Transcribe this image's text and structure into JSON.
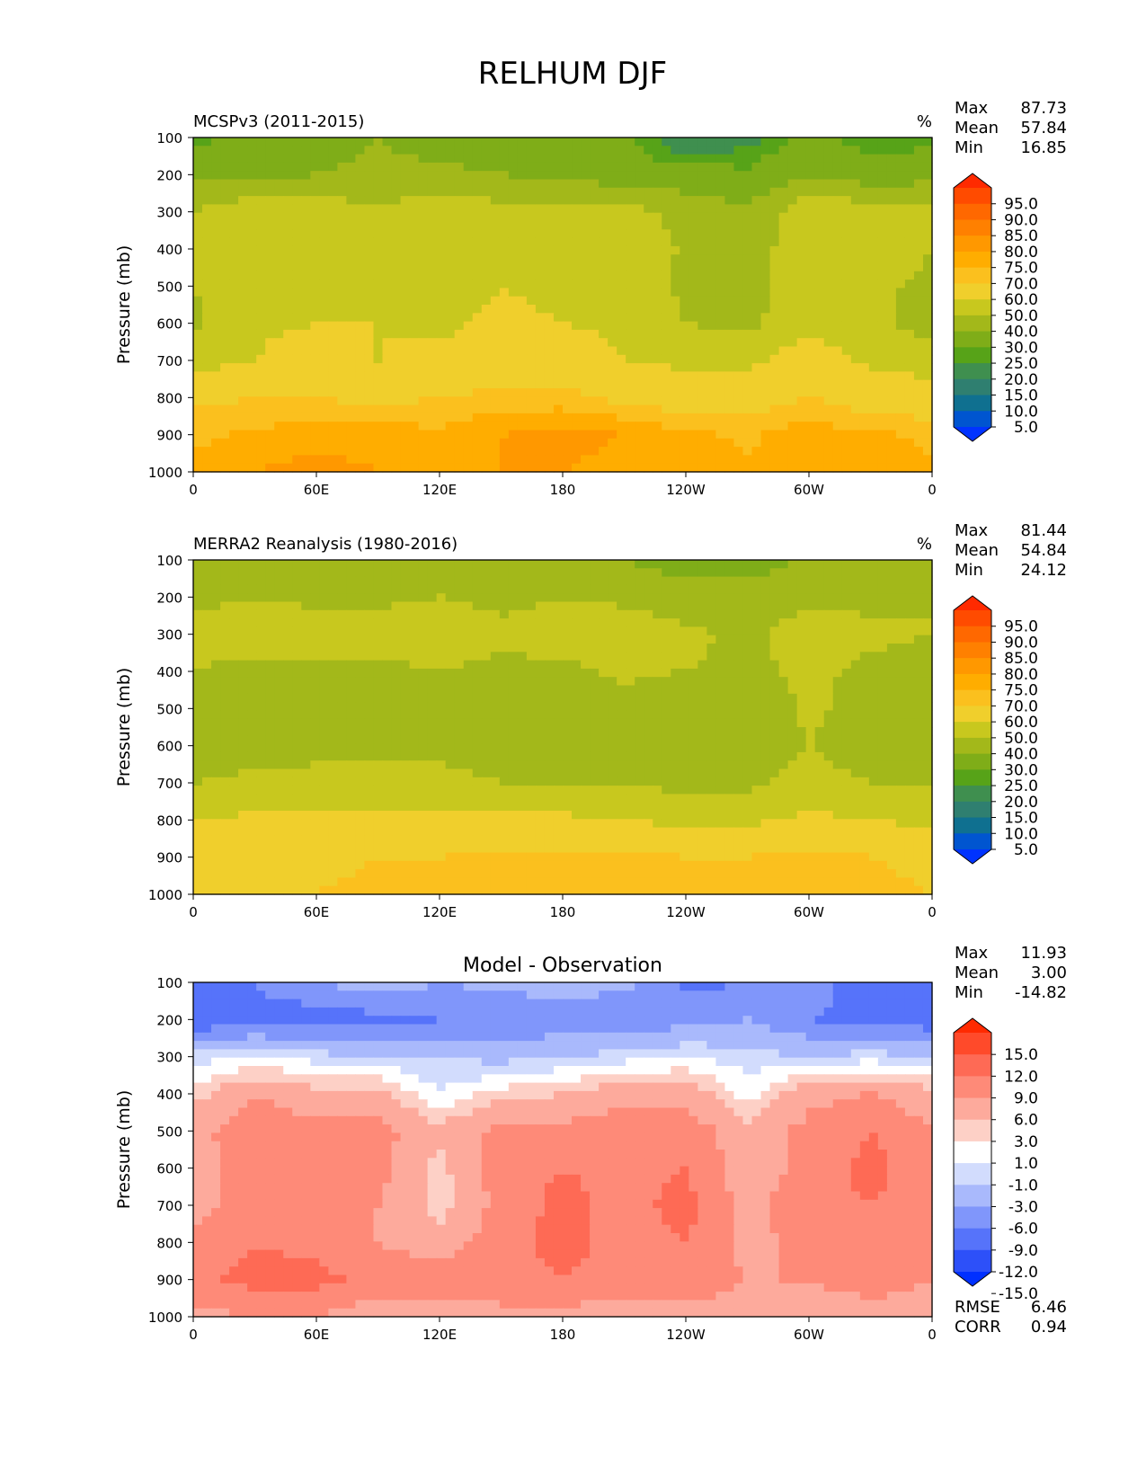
{
  "figure": {
    "title": "RELHUM DJF"
  },
  "axes": {
    "ylabel": "Pressure (mb)",
    "y_ticks": [
      "100",
      "200",
      "300",
      "400",
      "500",
      "600",
      "700",
      "800",
      "900",
      "1000"
    ],
    "x_ticks": [
      "0",
      "60E",
      "120E",
      "180",
      "120W",
      "60W",
      "0"
    ]
  },
  "stats_labels": {
    "max": "Max",
    "mean": "Mean",
    "min": "Min",
    "rmse": "RMSE",
    "corr": "CORR"
  },
  "panels": [
    {
      "id": "model",
      "left_title": "MCSPv3 (2011-2015)",
      "center_title": "",
      "units": "%",
      "stats": {
        "max": "87.73",
        "mean": "57.84",
        "min": "16.85"
      },
      "colorbar": {
        "labels": [
          "95.0",
          "90.0",
          "85.0",
          "80.0",
          "75.0",
          "70.0",
          "60.0",
          "50.0",
          "40.0",
          "30.0",
          "25.0",
          "20.0",
          "15.0",
          "10.0",
          "5.0"
        ],
        "colors": [
          "#ff2a00",
          "#ff4b00",
          "#ff6800",
          "#ff8000",
          "#ff9800",
          "#ffad00",
          "#fbc01e",
          "#f0cf2c",
          "#c8c81e",
          "#a3b81a",
          "#7fad18",
          "#57a318",
          "#3f8f4f",
          "#2f7f70",
          "#0f7090",
          "#0055d0",
          "#0033ff"
        ]
      }
    },
    {
      "id": "obs",
      "left_title": "MERRA2 Reanalysis (1980-2016)",
      "center_title": "",
      "units": "%",
      "stats": {
        "max": "81.44",
        "mean": "54.84",
        "min": "24.12"
      },
      "colorbar": {
        "labels": [
          "95.0",
          "90.0",
          "85.0",
          "80.0",
          "75.0",
          "70.0",
          "60.0",
          "50.0",
          "40.0",
          "30.0",
          "25.0",
          "20.0",
          "15.0",
          "10.0",
          "5.0"
        ],
        "colors": [
          "#ff2a00",
          "#ff4b00",
          "#ff6800",
          "#ff8000",
          "#ff9800",
          "#ffad00",
          "#fbc01e",
          "#f0cf2c",
          "#c8c81e",
          "#a3b81a",
          "#7fad18",
          "#57a318",
          "#3f8f4f",
          "#2f7f70",
          "#0f7090",
          "#0055d0",
          "#0033ff"
        ]
      }
    },
    {
      "id": "diff",
      "left_title": "",
      "center_title": "Model - Observation",
      "units": "",
      "stats": {
        "max": "11.93",
        "mean": "3.00",
        "min": "-14.82",
        "rmse": "6.46",
        "corr": "0.94"
      },
      "colorbar": {
        "labels": [
          "15.0",
          "12.0",
          "9.0",
          "6.0",
          "3.0",
          "1.0",
          "-1.0",
          "-3.0",
          "-6.0",
          "-9.0",
          "-12.0",
          "-15.0"
        ],
        "colors": [
          "#ff2a00",
          "#ff4a2a",
          "#fe6a55",
          "#fe8a78",
          "#fdaa9c",
          "#fdd0c6",
          "#ffffff",
          "#d2dcfd",
          "#a9b9fc",
          "#8096fb",
          "#5673fa",
          "#2d50f9",
          "#0030ff"
        ]
      }
    }
  ],
  "chart_data": [
    {
      "type": "heatmap",
      "title": "MCSPv3 (2011-2015)",
      "units": "%",
      "ylabel": "Pressure (mb)",
      "x": [
        0,
        30,
        60,
        90,
        120,
        150,
        180,
        210,
        240,
        270,
        300,
        330,
        360
      ],
      "x_labels": [
        "0",
        "60E",
        "120E",
        "180",
        "120W",
        "60W",
        "0"
      ],
      "y": [
        100,
        200,
        300,
        400,
        500,
        600,
        700,
        800,
        900,
        1000
      ],
      "ylim": [
        1000,
        100
      ],
      "levels": [
        5,
        10,
        15,
        20,
        25,
        30,
        40,
        50,
        60,
        70,
        75,
        80,
        85,
        90,
        95
      ],
      "z": [
        [
          28,
          32,
          36,
          40,
          36,
          34,
          38,
          32,
          18,
          22,
          34,
          26,
          28
        ],
        [
          38,
          36,
          40,
          42,
          42,
          40,
          38,
          34,
          34,
          32,
          38,
          34,
          36
        ],
        [
          50,
          58,
          56,
          52,
          56,
          54,
          52,
          55,
          46,
          42,
          58,
          56,
          54
        ],
        [
          52,
          56,
          55,
          58,
          52,
          54,
          50,
          60,
          48,
          44,
          58,
          56,
          50
        ],
        [
          50,
          58,
          60,
          58,
          56,
          60,
          58,
          58,
          48,
          46,
          56,
          52,
          48
        ],
        [
          48,
          58,
          60,
          60,
          58,
          62,
          60,
          58,
          50,
          48,
          56,
          52,
          46
        ],
        [
          56,
          60,
          66,
          60,
          62,
          66,
          66,
          60,
          58,
          58,
          66,
          58,
          56
        ],
        [
          68,
          70,
          70,
          68,
          70,
          72,
          72,
          68,
          66,
          66,
          70,
          66,
          64
        ],
        [
          74,
          76,
          78,
          78,
          76,
          80,
          82,
          80,
          76,
          74,
          78,
          76,
          74
        ],
        [
          76,
          80,
          82,
          80,
          78,
          80,
          80,
          78,
          78,
          76,
          78,
          76,
          76
        ]
      ],
      "stats": {
        "max": 87.73,
        "mean": 57.84,
        "min": 16.85
      }
    },
    {
      "type": "heatmap",
      "title": "MERRA2 Reanalysis (1980-2016)",
      "units": "%",
      "ylabel": "Pressure (mb)",
      "x": [
        0,
        30,
        60,
        90,
        120,
        150,
        180,
        210,
        240,
        270,
        300,
        330,
        360
      ],
      "x_labels": [
        "0",
        "60E",
        "120E",
        "180",
        "120W",
        "60W",
        "0"
      ],
      "y": [
        100,
        200,
        300,
        400,
        500,
        600,
        700,
        800,
        900,
        1000
      ],
      "ylim": [
        1000,
        100
      ],
      "levels": [
        5,
        10,
        15,
        20,
        25,
        30,
        40,
        50,
        60,
        70,
        75,
        80,
        85,
        90,
        95
      ],
      "z": [
        [
          42,
          44,
          44,
          42,
          44,
          42,
          42,
          40,
          36,
          34,
          42,
          44,
          42
        ],
        [
          48,
          50,
          48,
          48,
          50,
          48,
          50,
          48,
          44,
          46,
          48,
          48,
          50
        ],
        [
          52,
          55,
          55,
          55,
          54,
          52,
          54,
          56,
          52,
          48,
          54,
          52,
          50
        ],
        [
          50,
          48,
          48,
          48,
          50,
          48,
          48,
          52,
          50,
          48,
          52,
          48,
          46
        ],
        [
          46,
          44,
          46,
          46,
          48,
          46,
          46,
          46,
          40,
          42,
          52,
          46,
          42
        ],
        [
          44,
          46,
          46,
          46,
          48,
          46,
          46,
          44,
          42,
          44,
          50,
          44,
          42
        ],
        [
          50,
          52,
          54,
          54,
          52,
          50,
          50,
          48,
          48,
          48,
          54,
          50,
          48
        ],
        [
          60,
          62,
          62,
          62,
          62,
          62,
          62,
          60,
          58,
          58,
          62,
          60,
          58
        ],
        [
          66,
          68,
          68,
          70,
          70,
          72,
          72,
          72,
          70,
          70,
          72,
          70,
          68
        ],
        [
          70,
          70,
          70,
          72,
          72,
          74,
          74,
          74,
          72,
          72,
          72,
          72,
          70
        ]
      ],
      "stats": {
        "max": 81.44,
        "mean": 54.84,
        "min": 24.12
      }
    },
    {
      "type": "heatmap",
      "title": "Model - Observation",
      "ylabel": "Pressure (mb)",
      "x": [
        0,
        30,
        60,
        90,
        120,
        150,
        180,
        210,
        240,
        270,
        300,
        330,
        360
      ],
      "x_labels": [
        "0",
        "60E",
        "120E",
        "180",
        "120W",
        "60W",
        "0"
      ],
      "y": [
        100,
        200,
        300,
        400,
        500,
        600,
        700,
        800,
        900,
        1000
      ],
      "ylim": [
        1000,
        100
      ],
      "levels": [
        -15,
        -12,
        -9,
        -6,
        -3,
        -1,
        1,
        3,
        6,
        9,
        12,
        15
      ],
      "z": [
        [
          -12,
          -9,
          -6,
          -4,
          -6,
          -5,
          -4,
          -5,
          -10,
          -9,
          -7,
          -12,
          -11
        ],
        [
          -12,
          -10,
          -11,
          -10,
          -9,
          -9,
          -8,
          -9,
          -7,
          -6,
          -9,
          -10,
          -11
        ],
        [
          -2,
          -1,
          -2,
          -3,
          -3,
          -4,
          -3,
          -2,
          -1,
          -2,
          -3,
          -2,
          -3
        ],
        [
          2,
          6,
          4,
          4,
          -1,
          2,
          3,
          5,
          5,
          0,
          5,
          6,
          4
        ],
        [
          5,
          8,
          7,
          7,
          4,
          7,
          7,
          8,
          8,
          4,
          7,
          9,
          6
        ],
        [
          5,
          7,
          8,
          7,
          2,
          8,
          9,
          8,
          9,
          4,
          7,
          10,
          7
        ],
        [
          5,
          7,
          8,
          6,
          2,
          7,
          10,
          8,
          10,
          5,
          8,
          9,
          7
        ],
        [
          7,
          9,
          8,
          6,
          4,
          8,
          10,
          8,
          9,
          5,
          7,
          8,
          7
        ],
        [
          8,
          10,
          10,
          8,
          8,
          8,
          9,
          8,
          8,
          6,
          6,
          7,
          6
        ],
        [
          5,
          6,
          6,
          4,
          4,
          5,
          5,
          4,
          5,
          4,
          5,
          5,
          5
        ]
      ],
      "stats": {
        "max": 11.93,
        "mean": 3.0,
        "min": -14.82,
        "rmse": 6.46,
        "corr": 0.94
      }
    }
  ]
}
